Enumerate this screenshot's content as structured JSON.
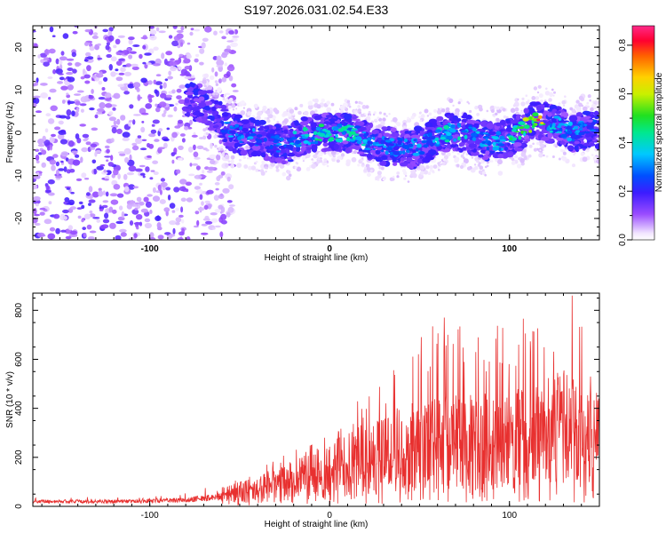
{
  "title": "S197.2026.031.02.54.E33",
  "colors": {
    "snr_line": "#e8302f",
    "axis": "#000000",
    "background": "#ffffff"
  },
  "chart_data": [
    {
      "type": "heatmap",
      "xlabel": "Height of straight line (km)",
      "ylabel": "Frequency (Hz)",
      "xlim": [
        -165,
        150
      ],
      "ylim": [
        -25,
        25
      ],
      "xticks": [
        "-100",
        "0",
        "100"
      ],
      "xtick_values": [
        -100,
        0,
        100
      ],
      "yticks": [
        "20",
        "10",
        "0",
        "-10",
        "-20"
      ],
      "ytick_values": [
        20,
        10,
        0,
        -10,
        -20
      ],
      "colorbar": {
        "label": "Normalized spectral amplitude",
        "range": [
          0,
          0.88
        ],
        "ticks": [
          "0.0",
          "0.2",
          "0.4",
          "0.6",
          "0.8"
        ],
        "tick_values": [
          0.0,
          0.2,
          0.4,
          0.6,
          0.8
        ],
        "colormap": "rainbow"
      },
      "noise_region_x": [
        -165,
        -60
      ],
      "ridge": {
        "x": [
          -75,
          -65,
          -55,
          -45,
          -35,
          -25,
          -15,
          -5,
          5,
          15,
          25,
          35,
          45,
          55,
          65,
          75,
          85,
          95,
          105,
          115,
          125,
          135,
          145
        ],
        "freq": [
          7,
          5,
          0,
          -1,
          -2,
          -3,
          -1,
          0,
          0,
          0,
          -3,
          -3,
          -4,
          -2,
          0,
          0,
          -2,
          -2,
          0,
          3,
          2,
          0,
          1
        ],
        "amplitude": [
          0.15,
          0.2,
          0.35,
          0.35,
          0.3,
          0.35,
          0.45,
          0.5,
          0.45,
          0.45,
          0.35,
          0.35,
          0.35,
          0.35,
          0.45,
          0.45,
          0.4,
          0.4,
          0.55,
          0.8,
          0.4,
          0.35,
          0.3
        ]
      }
    },
    {
      "type": "line",
      "xlabel": "Height of straight line (km)",
      "ylabel": "SNR (10 * v/v)",
      "xlim": [
        -165,
        150
      ],
      "ylim": [
        0,
        870
      ],
      "xticks": [
        "-100",
        "0",
        "100"
      ],
      "xtick_values": [
        -100,
        0,
        100
      ],
      "yticks": [
        "0",
        "200",
        "400",
        "600",
        "800"
      ],
      "ytick_values": [
        0,
        200,
        400,
        600,
        800
      ],
      "series": [
        {
          "name": "SNR",
          "envelope_x": [
            -165,
            -120,
            -80,
            -60,
            -40,
            -20,
            0,
            20,
            40,
            60,
            80,
            100,
            120,
            130,
            140,
            150
          ],
          "envelope_mean": [
            22,
            22,
            28,
            45,
            70,
            110,
            150,
            200,
            240,
            260,
            260,
            280,
            300,
            320,
            290,
            260
          ],
          "envelope_peak": [
            35,
            38,
            60,
            90,
            150,
            240,
            330,
            480,
            650,
            800,
            700,
            760,
            800,
            870,
            850,
            520
          ]
        }
      ]
    }
  ]
}
